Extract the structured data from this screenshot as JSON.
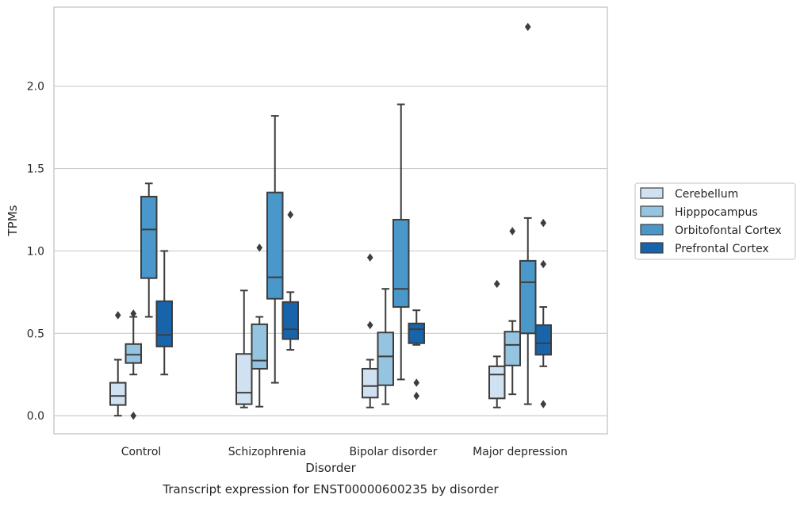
{
  "caption": "Transcript expression for ENST00000600235 by disorder",
  "chart_data": {
    "type": "box",
    "title": "",
    "xlabel": "Disorder",
    "ylabel": "TPMs",
    "ylim": [
      -0.11,
      2.48
    ],
    "yticks": [
      0.0,
      0.5,
      1.0,
      1.5,
      2.0
    ],
    "ytick_labels": [
      "0.0",
      "0.5",
      "1.0",
      "1.5",
      "2.0"
    ],
    "grid": "horizontal",
    "legend_position": "right",
    "categories": [
      "Control",
      "Schizophrenia",
      "Bipolar disorder",
      "Major depression"
    ],
    "colors": [
      "#d0e1f2",
      "#94c4df",
      "#4a98c9",
      "#1764ab"
    ],
    "edge_color": "#3d3d3d",
    "series": [
      {
        "name": "Cerebellum",
        "boxes": [
          {
            "whislo": 0.0,
            "q1": 0.065,
            "med": 0.12,
            "q3": 0.2,
            "whishi": 0.34,
            "fliers": [
              0.61
            ]
          },
          {
            "whislo": 0.05,
            "q1": 0.07,
            "med": 0.14,
            "q3": 0.375,
            "whishi": 0.76,
            "fliers": []
          },
          {
            "whislo": 0.05,
            "q1": 0.11,
            "med": 0.18,
            "q3": 0.285,
            "whishi": 0.34,
            "fliers": [
              0.55,
              0.96
            ]
          },
          {
            "whislo": 0.05,
            "q1": 0.105,
            "med": 0.25,
            "q3": 0.3,
            "whishi": 0.36,
            "fliers": [
              0.8
            ]
          }
        ]
      },
      {
        "name": "Hipppocampus",
        "boxes": [
          {
            "whislo": 0.25,
            "q1": 0.32,
            "med": 0.37,
            "q3": 0.435,
            "whishi": 0.6,
            "fliers": [
              0.0,
              0.62
            ]
          },
          {
            "whislo": 0.055,
            "q1": 0.285,
            "med": 0.335,
            "q3": 0.555,
            "whishi": 0.6,
            "fliers": [
              1.02
            ]
          },
          {
            "whislo": 0.07,
            "q1": 0.185,
            "med": 0.36,
            "q3": 0.505,
            "whishi": 0.77,
            "fliers": []
          },
          {
            "whislo": 0.13,
            "q1": 0.305,
            "med": 0.43,
            "q3": 0.51,
            "whishi": 0.575,
            "fliers": [
              1.12
            ]
          }
        ]
      },
      {
        "name": "Orbitofontal Cortex",
        "boxes": [
          {
            "whislo": 0.6,
            "q1": 0.835,
            "med": 1.13,
            "q3": 1.33,
            "whishi": 1.41,
            "fliers": []
          },
          {
            "whislo": 0.2,
            "q1": 0.71,
            "med": 0.84,
            "q3": 1.355,
            "whishi": 1.82,
            "fliers": []
          },
          {
            "whislo": 0.22,
            "q1": 0.66,
            "med": 0.77,
            "q3": 1.19,
            "whishi": 1.89,
            "fliers": []
          },
          {
            "whislo": 0.07,
            "q1": 0.5,
            "med": 0.81,
            "q3": 0.94,
            "whishi": 1.2,
            "fliers": [
              2.36
            ]
          }
        ]
      },
      {
        "name": "Prefrontal Cortex",
        "boxes": [
          {
            "whislo": 0.25,
            "q1": 0.42,
            "med": 0.49,
            "q3": 0.695,
            "whishi": 1.0,
            "fliers": []
          },
          {
            "whislo": 0.4,
            "q1": 0.465,
            "med": 0.525,
            "q3": 0.69,
            "whishi": 0.75,
            "fliers": [
              1.22
            ]
          },
          {
            "whislo": 0.43,
            "q1": 0.44,
            "med": 0.525,
            "q3": 0.56,
            "whishi": 0.64,
            "fliers": [
              0.12,
              0.2
            ]
          },
          {
            "whislo": 0.3,
            "q1": 0.37,
            "med": 0.44,
            "q3": 0.55,
            "whishi": 0.66,
            "fliers": [
              0.07,
              0.92,
              1.17
            ]
          }
        ]
      }
    ]
  }
}
